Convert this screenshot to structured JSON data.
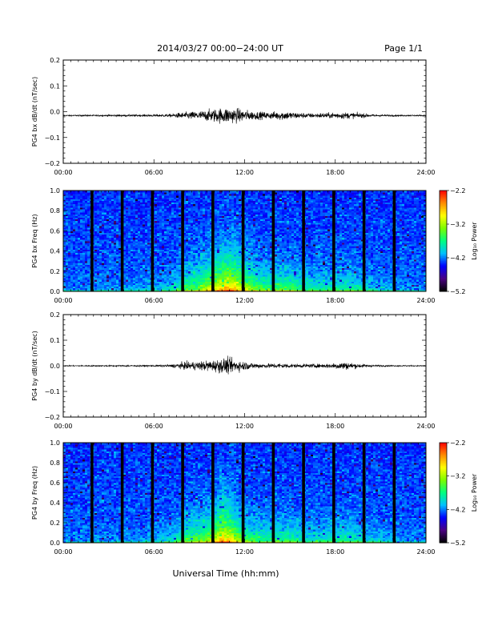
{
  "header": {
    "title": "2014/03/27  00:00−24:00 UT",
    "page": "Page 1/1"
  },
  "footer": {
    "xlabel": "Universal Time (hh:mm)"
  },
  "colors": {
    "trace": "#000000",
    "background": "#ffffff",
    "spectrogram_scale": [
      "#000000",
      "#4b0082",
      "#0000ff",
      "#00bfff",
      "#00ff7f",
      "#7cfc00",
      "#ffff00",
      "#ff8c00",
      "#ff0000"
    ]
  },
  "chart_data": [
    {
      "type": "line",
      "id": "bx-dbdt",
      "ylabel": "PG4 bx dB/dt (nT/sec)",
      "xlim_hours": [
        0,
        24
      ],
      "ylim": [
        -0.2,
        0.2
      ],
      "yticks": [
        -0.2,
        -0.1,
        0.0,
        0.1,
        0.2
      ],
      "ytick_labels": [
        "−0.2",
        "−0.1",
        "0.0",
        "0.1",
        "0.2"
      ],
      "xticks_hours": [
        0,
        6,
        12,
        18,
        24
      ],
      "xtick_labels": [
        "00:00",
        "06:00",
        "12:00",
        "18:00",
        "24:00"
      ],
      "baseline": -0.015,
      "amplitude_envelope": {
        "hours": [
          0,
          2,
          4,
          6,
          7,
          8,
          9,
          10,
          10.8,
          11.5,
          12.5,
          13.5,
          14.5,
          15.5,
          16.5,
          17.5,
          18.5,
          19.5,
          20.5,
          22,
          24
        ],
        "amp": [
          0.004,
          0.005,
          0.006,
          0.008,
          0.01,
          0.022,
          0.03,
          0.045,
          0.055,
          0.048,
          0.03,
          0.022,
          0.032,
          0.02,
          0.015,
          0.018,
          0.022,
          0.018,
          0.008,
          0.005,
          0.004
        ]
      }
    },
    {
      "type": "heatmap",
      "id": "bx-spec",
      "ylabel": "PG4 bx Freq (Hz)",
      "colorbar_label": "Log₁₀ Power",
      "colorbar_ticks": [
        -2.2,
        -3.2,
        -4.2,
        -5.2
      ],
      "colorbar_tick_labels": [
        "−2.2",
        "−3.2",
        "−4.2",
        "−5.2"
      ],
      "zlim": [
        -5.2,
        -2.2
      ],
      "xlim_hours": [
        0,
        24
      ],
      "ylim": [
        0,
        1.0
      ],
      "yticks": [
        0.0,
        0.2,
        0.4,
        0.6,
        0.8,
        1.0
      ],
      "ytick_labels": [
        "0.0",
        "0.2",
        "0.4",
        "0.6",
        "0.8",
        "1.0"
      ],
      "xticks_hours": [
        0,
        6,
        12,
        18,
        24
      ],
      "xtick_labels": [
        "00:00",
        "06:00",
        "12:00",
        "18:00",
        "24:00"
      ],
      "gap_hours": [
        1.9,
        3.9,
        5.9,
        7.9,
        9.9,
        11.9,
        13.9,
        15.9,
        17.9,
        19.9,
        21.9
      ],
      "activity_hours": [
        0,
        4,
        7,
        8,
        9,
        10,
        11,
        12,
        13,
        14,
        15,
        16,
        17,
        18,
        19,
        20,
        22,
        24
      ],
      "activity_level": [
        0.05,
        0.08,
        0.2,
        0.45,
        0.55,
        0.8,
        0.95,
        0.7,
        0.5,
        0.45,
        0.5,
        0.35,
        0.3,
        0.35,
        0.35,
        0.25,
        0.1,
        0.05
      ]
    },
    {
      "type": "line",
      "id": "by-dbdt",
      "ylabel": "PG4 by dB/dt (nT/sec)",
      "xlim_hours": [
        0,
        24
      ],
      "ylim": [
        -0.2,
        0.2
      ],
      "yticks": [
        -0.2,
        -0.1,
        0.0,
        0.1,
        0.2
      ],
      "ytick_labels": [
        "−0.2",
        "−0.1",
        "0.0",
        "0.1",
        "0.2"
      ],
      "xticks_hours": [
        0,
        6,
        12,
        18,
        24
      ],
      "xtick_labels": [
        "00:00",
        "06:00",
        "12:00",
        "18:00",
        "24:00"
      ],
      "baseline": 0.0,
      "amplitude_envelope": {
        "hours": [
          0,
          2,
          4,
          6,
          7,
          8,
          9,
          10,
          10.8,
          11.5,
          12.5,
          13.5,
          14.5,
          15.5,
          16.5,
          17.5,
          18.5,
          19.5,
          20.5,
          22,
          24
        ],
        "amp": [
          0.003,
          0.004,
          0.005,
          0.006,
          0.008,
          0.025,
          0.03,
          0.04,
          0.055,
          0.04,
          0.02,
          0.015,
          0.018,
          0.012,
          0.012,
          0.015,
          0.028,
          0.015,
          0.006,
          0.004,
          0.003
        ]
      }
    },
    {
      "type": "heatmap",
      "id": "by-spec",
      "ylabel": "PG4 by Freq (Hz)",
      "colorbar_label": "Log₁₀ Power",
      "colorbar_ticks": [
        -2.2,
        -3.2,
        -4.2,
        -5.2
      ],
      "colorbar_tick_labels": [
        "−2.2",
        "−3.2",
        "−4.2",
        "−5.2"
      ],
      "zlim": [
        -5.2,
        -2.2
      ],
      "xlim_hours": [
        0,
        24
      ],
      "ylim": [
        0,
        1.0
      ],
      "yticks": [
        0.0,
        0.2,
        0.4,
        0.6,
        0.8,
        1.0
      ],
      "ytick_labels": [
        "0.0",
        "0.2",
        "0.4",
        "0.6",
        "0.8",
        "1.0"
      ],
      "xticks_hours": [
        0,
        6,
        12,
        18,
        24
      ],
      "xtick_labels": [
        "00:00",
        "06:00",
        "12:00",
        "18:00",
        "24:00"
      ],
      "gap_hours": [
        1.9,
        3.9,
        5.9,
        7.9,
        9.9,
        11.9,
        13.9,
        15.9,
        17.9,
        19.9,
        21.9
      ],
      "activity_hours": [
        0,
        4,
        7,
        8,
        9,
        10,
        10.5,
        11,
        12,
        13,
        14,
        15,
        16,
        17,
        18,
        19,
        20,
        22,
        24
      ],
      "activity_level": [
        0.05,
        0.08,
        0.2,
        0.45,
        0.55,
        0.7,
        1.0,
        0.85,
        0.5,
        0.4,
        0.4,
        0.4,
        0.3,
        0.3,
        0.35,
        0.35,
        0.25,
        0.1,
        0.05
      ]
    }
  ]
}
